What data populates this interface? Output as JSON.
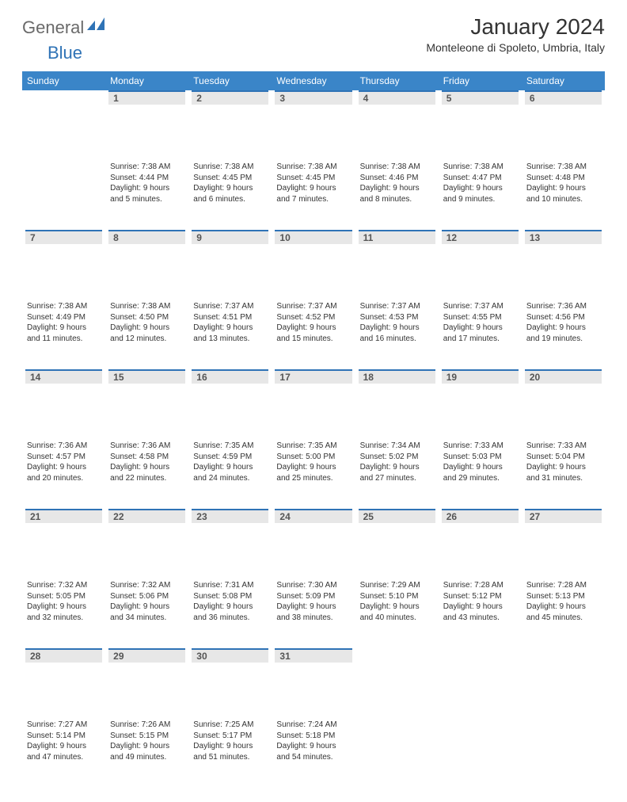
{
  "colors": {
    "header_bg": "#3a85c8",
    "daynum_bg": "#e7e7e7",
    "day_border": "#2f73b6",
    "text": "#333333",
    "logo_gray": "#6a6a6a",
    "logo_blue": "#2f73b6"
  },
  "logo": {
    "part1": "General",
    "part2": "Blue"
  },
  "title": "January 2024",
  "subtitle": "Monteleone di Spoleto, Umbria, Italy",
  "day_headers": [
    "Sunday",
    "Monday",
    "Tuesday",
    "Wednesday",
    "Thursday",
    "Friday",
    "Saturday"
  ],
  "weeks": [
    [
      null,
      {
        "n": "1",
        "sr": "7:38 AM",
        "ss": "4:44 PM",
        "dl": "9 hours and 5 minutes."
      },
      {
        "n": "2",
        "sr": "7:38 AM",
        "ss": "4:45 PM",
        "dl": "9 hours and 6 minutes."
      },
      {
        "n": "3",
        "sr": "7:38 AM",
        "ss": "4:45 PM",
        "dl": "9 hours and 7 minutes."
      },
      {
        "n": "4",
        "sr": "7:38 AM",
        "ss": "4:46 PM",
        "dl": "9 hours and 8 minutes."
      },
      {
        "n": "5",
        "sr": "7:38 AM",
        "ss": "4:47 PM",
        "dl": "9 hours and 9 minutes."
      },
      {
        "n": "6",
        "sr": "7:38 AM",
        "ss": "4:48 PM",
        "dl": "9 hours and 10 minutes."
      }
    ],
    [
      {
        "n": "7",
        "sr": "7:38 AM",
        "ss": "4:49 PM",
        "dl": "9 hours and 11 minutes."
      },
      {
        "n": "8",
        "sr": "7:38 AM",
        "ss": "4:50 PM",
        "dl": "9 hours and 12 minutes."
      },
      {
        "n": "9",
        "sr": "7:37 AM",
        "ss": "4:51 PM",
        "dl": "9 hours and 13 minutes."
      },
      {
        "n": "10",
        "sr": "7:37 AM",
        "ss": "4:52 PM",
        "dl": "9 hours and 15 minutes."
      },
      {
        "n": "11",
        "sr": "7:37 AM",
        "ss": "4:53 PM",
        "dl": "9 hours and 16 minutes."
      },
      {
        "n": "12",
        "sr": "7:37 AM",
        "ss": "4:55 PM",
        "dl": "9 hours and 17 minutes."
      },
      {
        "n": "13",
        "sr": "7:36 AM",
        "ss": "4:56 PM",
        "dl": "9 hours and 19 minutes."
      }
    ],
    [
      {
        "n": "14",
        "sr": "7:36 AM",
        "ss": "4:57 PM",
        "dl": "9 hours and 20 minutes."
      },
      {
        "n": "15",
        "sr": "7:36 AM",
        "ss": "4:58 PM",
        "dl": "9 hours and 22 minutes."
      },
      {
        "n": "16",
        "sr": "7:35 AM",
        "ss": "4:59 PM",
        "dl": "9 hours and 24 minutes."
      },
      {
        "n": "17",
        "sr": "7:35 AM",
        "ss": "5:00 PM",
        "dl": "9 hours and 25 minutes."
      },
      {
        "n": "18",
        "sr": "7:34 AM",
        "ss": "5:02 PM",
        "dl": "9 hours and 27 minutes."
      },
      {
        "n": "19",
        "sr": "7:33 AM",
        "ss": "5:03 PM",
        "dl": "9 hours and 29 minutes."
      },
      {
        "n": "20",
        "sr": "7:33 AM",
        "ss": "5:04 PM",
        "dl": "9 hours and 31 minutes."
      }
    ],
    [
      {
        "n": "21",
        "sr": "7:32 AM",
        "ss": "5:05 PM",
        "dl": "9 hours and 32 minutes."
      },
      {
        "n": "22",
        "sr": "7:32 AM",
        "ss": "5:06 PM",
        "dl": "9 hours and 34 minutes."
      },
      {
        "n": "23",
        "sr": "7:31 AM",
        "ss": "5:08 PM",
        "dl": "9 hours and 36 minutes."
      },
      {
        "n": "24",
        "sr": "7:30 AM",
        "ss": "5:09 PM",
        "dl": "9 hours and 38 minutes."
      },
      {
        "n": "25",
        "sr": "7:29 AM",
        "ss": "5:10 PM",
        "dl": "9 hours and 40 minutes."
      },
      {
        "n": "26",
        "sr": "7:28 AM",
        "ss": "5:12 PM",
        "dl": "9 hours and 43 minutes."
      },
      {
        "n": "27",
        "sr": "7:28 AM",
        "ss": "5:13 PM",
        "dl": "9 hours and 45 minutes."
      }
    ],
    [
      {
        "n": "28",
        "sr": "7:27 AM",
        "ss": "5:14 PM",
        "dl": "9 hours and 47 minutes."
      },
      {
        "n": "29",
        "sr": "7:26 AM",
        "ss": "5:15 PM",
        "dl": "9 hours and 49 minutes."
      },
      {
        "n": "30",
        "sr": "7:25 AM",
        "ss": "5:17 PM",
        "dl": "9 hours and 51 minutes."
      },
      {
        "n": "31",
        "sr": "7:24 AM",
        "ss": "5:18 PM",
        "dl": "9 hours and 54 minutes."
      },
      null,
      null,
      null
    ]
  ],
  "labels": {
    "sunrise": "Sunrise:",
    "sunset": "Sunset:",
    "daylight": "Daylight:"
  }
}
